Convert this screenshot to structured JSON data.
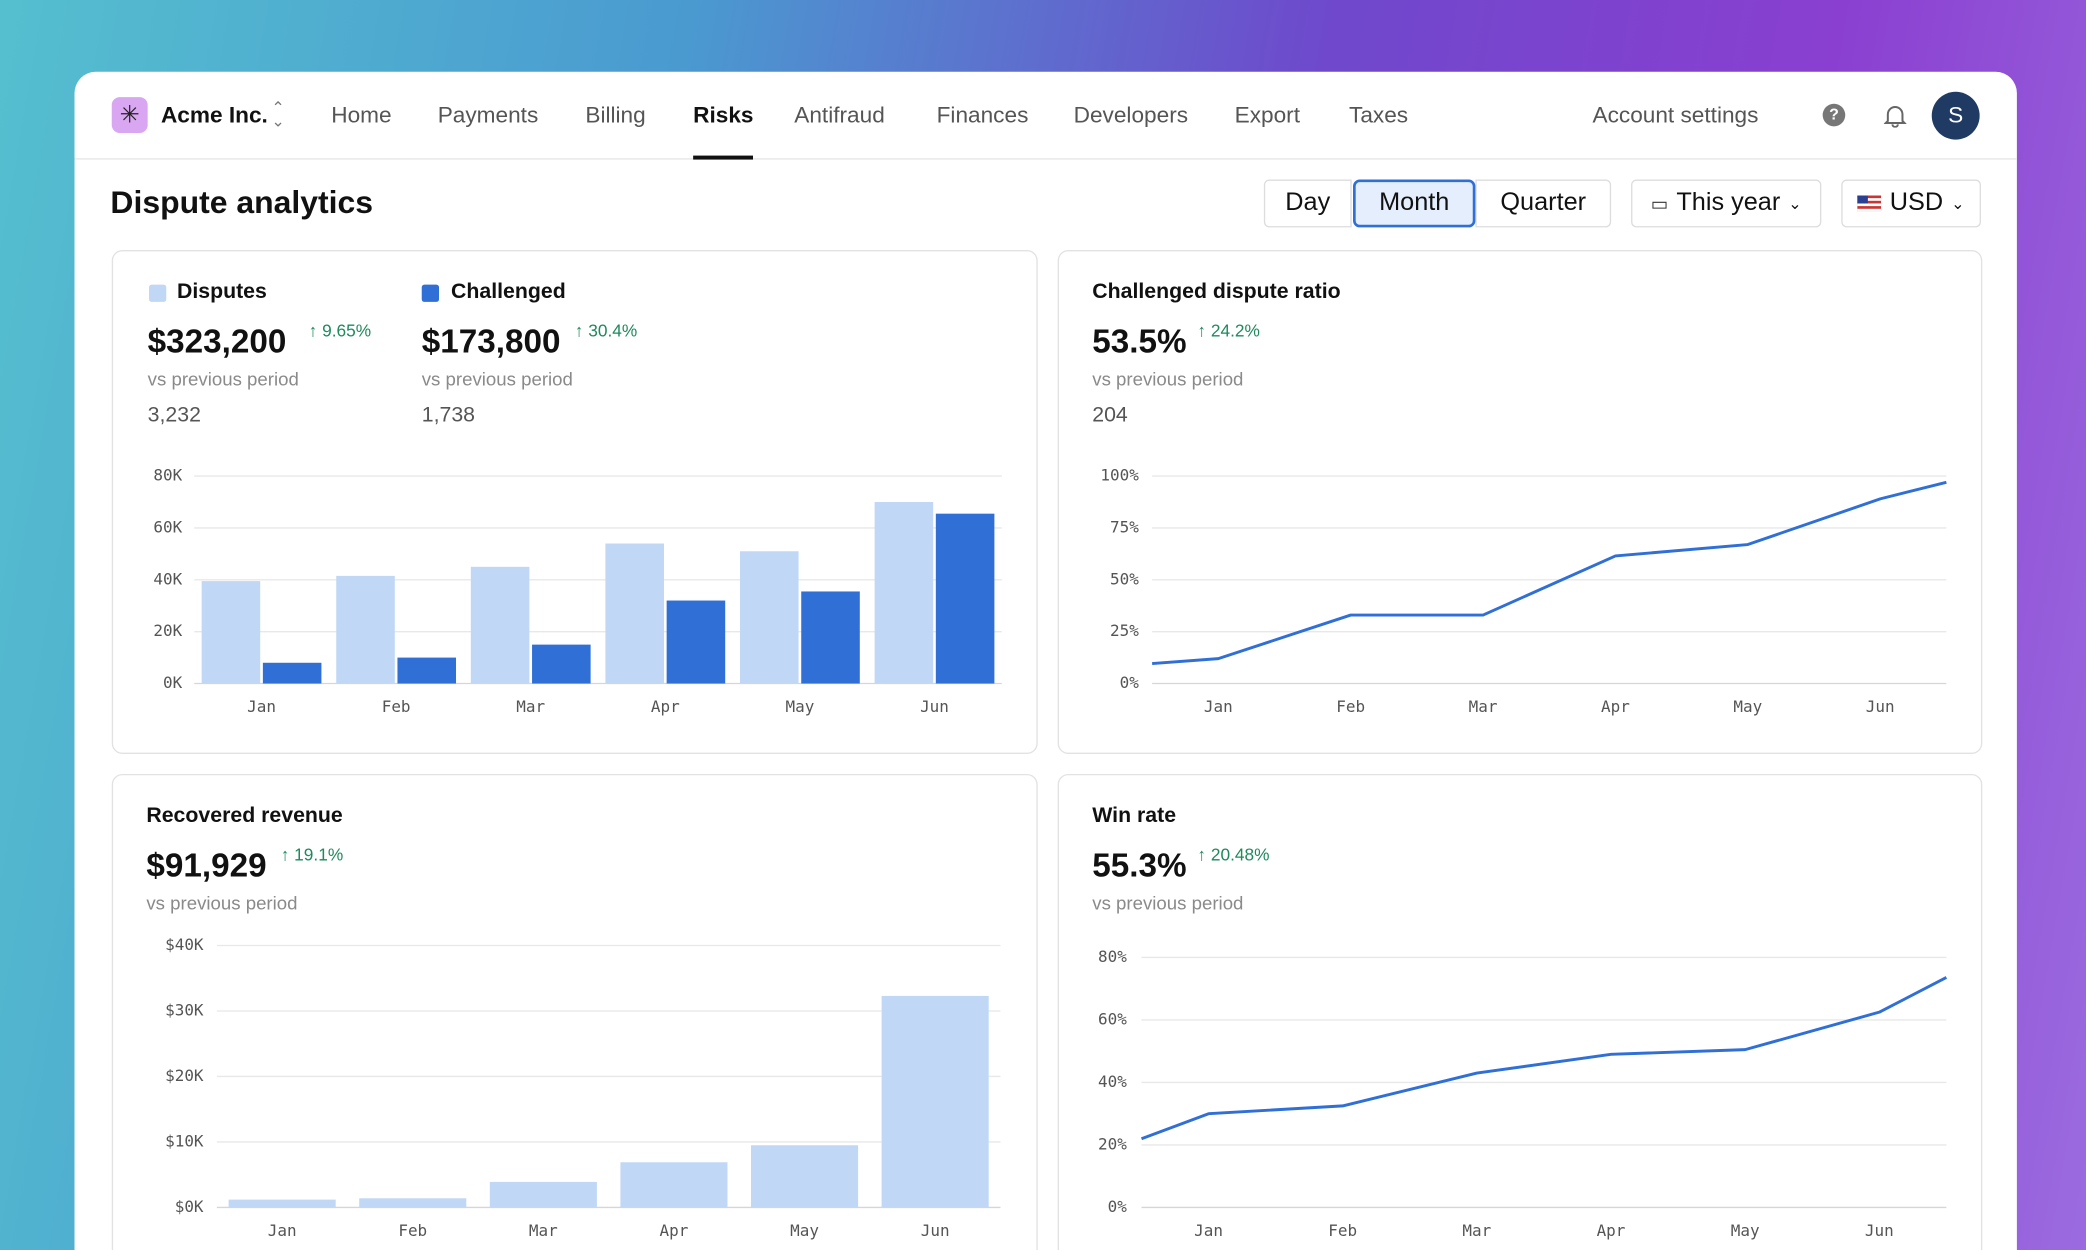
{
  "nav": {
    "org": "Acme Inc.",
    "items": [
      "Home",
      "Payments",
      "Billing",
      "Risks",
      "Antifraud",
      "Finances",
      "Developers",
      "Export",
      "Taxes"
    ],
    "active": 3,
    "account": "Account settings",
    "avatar": "S"
  },
  "page": {
    "title": "Dispute analytics",
    "periods": [
      "Day",
      "Month",
      "Quarter"
    ],
    "selected_period": 1,
    "range": "This year",
    "currency": "USD"
  },
  "chart_data": [
    {
      "type": "bar",
      "categories": [
        "Jan",
        "Feb",
        "Mar",
        "Apr",
        "May",
        "Jun"
      ],
      "series": [
        {
          "name": "Disputes",
          "color": "#c0d8f5",
          "values": [
            39500,
            41500,
            45000,
            54000,
            51000,
            70000
          ]
        },
        {
          "name": "Challenged",
          "color": "#2f6fd6",
          "values": [
            8000,
            10000,
            15000,
            32000,
            35500,
            65500
          ]
        }
      ],
      "stats": [
        {
          "value": "$323,200",
          "change": "9.65%",
          "note": "vs previous period",
          "count": "3,232"
        },
        {
          "value": "$173,800",
          "change": "30.4%",
          "note": "vs previous period",
          "count": "1,738"
        }
      ],
      "ylim": [
        0,
        80000
      ],
      "yticks": [
        {
          "value": 0,
          "label": "0K"
        },
        {
          "value": 20000,
          "label": "20K"
        },
        {
          "value": 40000,
          "label": "40K"
        },
        {
          "value": 60000,
          "label": "60K"
        },
        {
          "value": 80000,
          "label": "80K"
        }
      ],
      "grid": true
    },
    {
      "type": "line",
      "title": "Challenged dispute ratio",
      "categories": [
        null,
        "Jan",
        "Feb",
        "Mar",
        "Apr",
        "May",
        "Jun",
        null
      ],
      "series": [
        {
          "color": "#2f6fd6",
          "values": [
            9.6,
            12,
            33,
            33,
            61.5,
            67,
            89,
            97
          ]
        }
      ],
      "stats": [
        {
          "value": "53.5%",
          "change": "24.2%",
          "note": "vs previous period",
          "count": "204"
        }
      ],
      "ylim": [
        0,
        100
      ],
      "yticks": [
        {
          "value": 0,
          "label": "0%"
        },
        {
          "value": 25,
          "label": "25%"
        },
        {
          "value": 50,
          "label": "50%"
        },
        {
          "value": 75,
          "label": "75%"
        },
        {
          "value": 100,
          "label": "100%"
        }
      ],
      "grid": true
    },
    {
      "type": "bar",
      "title": "Recovered revenue",
      "categories": [
        "Jan",
        "Feb",
        "Mar",
        "Apr",
        "May",
        "Jun"
      ],
      "series": [
        {
          "color": "#c0d8f5",
          "values": [
            1200,
            1400,
            3900,
            6900,
            9500,
            32300
          ]
        }
      ],
      "stats": [
        {
          "value": "$91,929",
          "change": "19.1%",
          "note": "vs previous period"
        }
      ],
      "ylim": [
        0,
        40000
      ],
      "yticks": [
        {
          "value": 0,
          "label": "$0K"
        },
        {
          "value": 10000,
          "label": "$10K"
        },
        {
          "value": 20000,
          "label": "$20K"
        },
        {
          "value": 30000,
          "label": "$30K"
        },
        {
          "value": 40000,
          "label": "$40K"
        }
      ],
      "grid": true
    },
    {
      "type": "line",
      "title": "Win rate",
      "categories": [
        null,
        "Jan",
        "Feb",
        "Mar",
        "Apr",
        "May",
        "Jun",
        null
      ],
      "series": [
        {
          "color": "#2f6fd6",
          "values": [
            22,
            30,
            32.5,
            43,
            49,
            50.5,
            62.5,
            73.6
          ]
        }
      ],
      "stats": [
        {
          "value": "55.3%",
          "change": "20.48%",
          "note": "vs previous period"
        }
      ],
      "ylim": [
        0,
        80
      ],
      "yticks": [
        {
          "value": 0,
          "label": "0%"
        },
        {
          "value": 20,
          "label": "20%"
        },
        {
          "value": 40,
          "label": "40%"
        },
        {
          "value": 60,
          "label": "60%"
        },
        {
          "value": 80,
          "label": "80%"
        }
      ],
      "grid": true
    }
  ]
}
